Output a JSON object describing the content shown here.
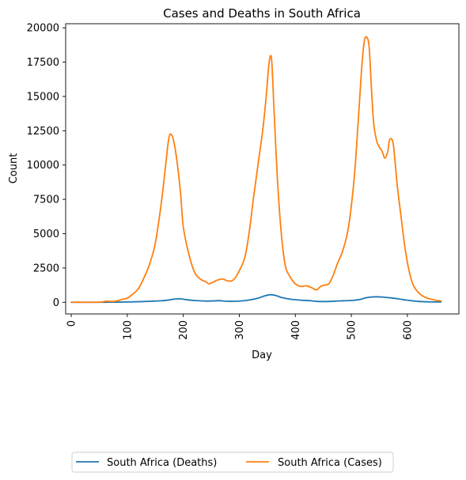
{
  "chart_data": {
    "type": "line",
    "title": "Cases and Deaths in South Africa",
    "xlabel": "Day",
    "ylabel": "Count",
    "xlim": [
      -10,
      692
    ],
    "ylim": [
      -850,
      20300
    ],
    "x_ticks": [
      0,
      100,
      200,
      300,
      400,
      500,
      600
    ],
    "y_ticks": [
      0,
      2500,
      5000,
      7500,
      10000,
      12500,
      15000,
      17500,
      20000
    ],
    "x_tick_rotation": 90,
    "legend_position": "bottom-center, below axes, 2 columns",
    "series": [
      {
        "name": "South Africa (Deaths)",
        "color": "#1f77b4",
        "x": [
          0,
          40,
          60,
          80,
          100,
          120,
          140,
          160,
          175,
          185,
          195,
          205,
          220,
          240,
          255,
          265,
          275,
          290,
          305,
          320,
          335,
          345,
          355,
          365,
          375,
          390,
          410,
          425,
          440,
          460,
          480,
          500,
          515,
          525,
          535,
          545,
          555,
          565,
          575,
          585,
          600,
          620,
          640,
          660
        ],
        "y": [
          0,
          0,
          5,
          10,
          20,
          40,
          70,
          110,
          170,
          240,
          250,
          190,
          130,
          90,
          100,
          120,
          80,
          70,
          100,
          180,
          320,
          460,
          550,
          500,
          350,
          230,
          150,
          120,
          60,
          60,
          100,
          130,
          200,
          320,
          380,
          400,
          380,
          340,
          300,
          240,
          150,
          60,
          30,
          20
        ]
      },
      {
        "name": "South Africa (Cases)",
        "color": "#ff7f0e",
        "x": [
          0,
          40,
          55,
          62,
          70,
          80,
          90,
          100,
          110,
          120,
          130,
          140,
          150,
          160,
          168,
          172,
          175,
          178,
          182,
          188,
          195,
          200,
          210,
          220,
          230,
          240,
          245,
          250,
          260,
          270,
          280,
          290,
          300,
          310,
          318,
          325,
          335,
          342,
          348,
          352,
          355,
          358,
          362,
          368,
          375,
          382,
          390,
          400,
          410,
          420,
          430,
          438,
          445,
          452,
          460,
          468,
          475,
          485,
          495,
          505,
          512,
          518,
          523,
          528,
          532,
          536,
          540,
          545,
          550,
          555,
          560,
          565,
          568,
          572,
          575,
          578,
          582,
          588,
          595,
          602,
          610,
          620,
          630,
          640,
          650,
          660
        ],
        "y": [
          0,
          0,
          20,
          80,
          60,
          80,
          200,
          300,
          600,
          1000,
          1800,
          2800,
          4300,
          7000,
          9800,
          11300,
          12100,
          12250,
          11900,
          10500,
          8000,
          5500,
          3500,
          2200,
          1700,
          1500,
          1350,
          1400,
          1600,
          1700,
          1550,
          1650,
          2300,
          3300,
          5200,
          7500,
          10500,
          12600,
          15000,
          17000,
          17900,
          17500,
          14000,
          9000,
          5000,
          2700,
          1900,
          1350,
          1150,
          1200,
          1050,
          900,
          1150,
          1250,
          1350,
          2000,
          2800,
          3800,
          5500,
          9000,
          13000,
          16800,
          19000,
          19300,
          18500,
          15500,
          13000,
          11800,
          11300,
          11000,
          10500,
          11000,
          11800,
          11900,
          11500,
          10300,
          8500,
          6500,
          4200,
          2500,
          1300,
          700,
          400,
          250,
          150,
          100
        ]
      }
    ]
  }
}
